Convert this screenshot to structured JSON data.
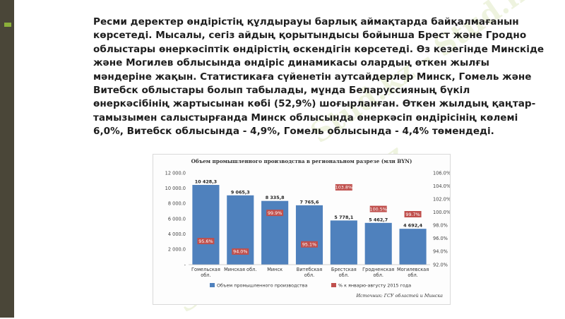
{
  "slide": {
    "paragraph": "Ресми деректер өндірістің құлдырауы барлық аймақтарда байқалмағанын көрсетеді. Мысалы, сегіз айдың қорытындысы бойынша Брест және Гродно облыстары өнеркәсіптік өндірістің өскендігін көрсетеді.  Өз кезегінде Минскіде және Могилев облысында өндіріс динамикасы олардың өткен жылғы мәндеріне жақын. Статистикаға сүйенетін аутсайдерлер Минск, Гомель және Витебск облыстары болып табылады, мұнда Беларуссияның бүкіл өнеркәсібінің жартысынан көбі (52,9%) шоғырланған.  Өткен жылдың қаңтар-тамызымен салыстырғанда Минск облысында өнеркәсіп өндірісінің көлемі 6,0%, Витебск облысында - 4,9%, Гомель облысында - 4,4% төмендеді.",
    "watermark": "Stud.kz - Stud.kz",
    "colors": {
      "bar": "#4f81bd",
      "marker": "#c0504d",
      "left_bar": "#4a4638",
      "accent": "#8bb03a"
    }
  },
  "chart_data": {
    "type": "bar",
    "title": "Объем промышленного производства в региональном разрезе (млн BYN)",
    "categories": [
      [
        "Гомельская",
        "обл."
      ],
      [
        "Минская обл."
      ],
      [
        "Минск"
      ],
      [
        "Витебская",
        "обл."
      ],
      [
        "Брестская",
        "обл."
      ],
      [
        "Гродненская",
        "обл."
      ],
      [
        "Могилевская",
        "обл."
      ]
    ],
    "series": [
      {
        "name": "Объем промышленного производства",
        "type": "bar",
        "axis": "left",
        "values": [
          10428.3,
          9065.3,
          8335.8,
          7765.6,
          5778.1,
          5462.7,
          4692.4
        ],
        "labels": [
          "10 428,3",
          "9 065,3",
          "8 335,8",
          "7 765,6",
          "5 778,1",
          "5 462,7",
          "4 692,4"
        ]
      },
      {
        "name": "% к январю-августу 2015 года",
        "type": "marker",
        "axis": "right",
        "values": [
          95.6,
          94.0,
          99.9,
          95.1,
          103.8,
          100.5,
          99.7
        ],
        "labels": [
          "95.6%",
          "94.0%",
          "99.9%",
          "95.1%",
          "103.8%",
          "100.5%",
          "99.7%"
        ]
      }
    ],
    "ylim_left": [
      0,
      12000
    ],
    "yticks_left": [
      "12 000.0",
      "10 000.0",
      "8 000.0",
      "6 000.0",
      "4 000.0",
      "2 000.0",
      "-"
    ],
    "ylim_right": [
      92,
      106
    ],
    "yticks_right": [
      "106.0%",
      "104.0%",
      "102.0%",
      "100.0%",
      "98.0%",
      "96.0%",
      "94.0%",
      "92.0%"
    ],
    "legend_position": "bottom",
    "source": "Источник: ГСУ областей и Минска",
    "grid": false
  }
}
